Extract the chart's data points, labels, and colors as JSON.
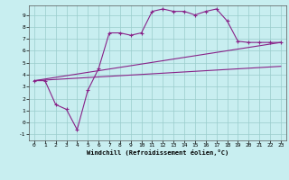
{
  "xlabel": "Windchill (Refroidissement éolien,°C)",
  "background_color": "#c8eef0",
  "line_color": "#882288",
  "grid_color": "#99cccc",
  "xlim": [
    -0.5,
    23.5
  ],
  "ylim": [
    -1.5,
    9.8
  ],
  "xticks": [
    0,
    1,
    2,
    3,
    4,
    5,
    6,
    7,
    8,
    9,
    10,
    11,
    12,
    13,
    14,
    15,
    16,
    17,
    18,
    19,
    20,
    21,
    22,
    23
  ],
  "yticks": [
    -1,
    0,
    1,
    2,
    3,
    4,
    5,
    6,
    7,
    8,
    9
  ],
  "series": [
    {
      "x": [
        0,
        1,
        2,
        3,
        4,
        5,
        6,
        7,
        8,
        9,
        10,
        11,
        12,
        13,
        14,
        15,
        16,
        17,
        18,
        19,
        20,
        21,
        22,
        23
      ],
      "y": [
        3.5,
        3.5,
        1.5,
        1.1,
        -0.6,
        2.7,
        4.5,
        7.5,
        7.5,
        7.3,
        7.5,
        9.3,
        9.5,
        9.3,
        9.3,
        9.0,
        9.3,
        9.5,
        8.5,
        6.8,
        6.7,
        6.7,
        6.7,
        6.7
      ],
      "has_markers": true
    },
    {
      "x": [
        0,
        23
      ],
      "y": [
        3.5,
        6.7
      ],
      "has_markers": false
    },
    {
      "x": [
        0,
        23
      ],
      "y": [
        3.5,
        4.7
      ],
      "has_markers": false
    }
  ]
}
